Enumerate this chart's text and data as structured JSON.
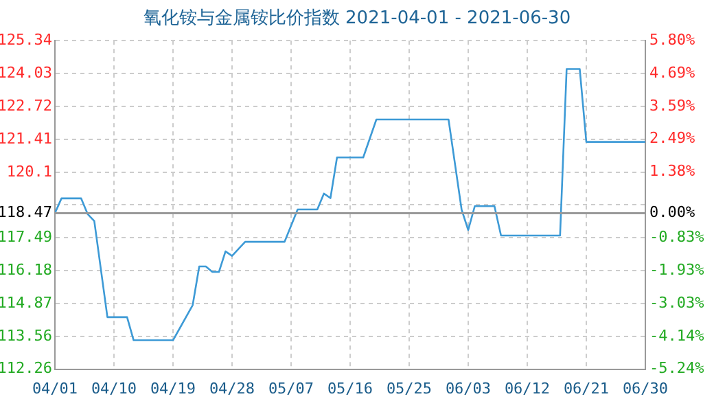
{
  "chart_data": {
    "type": "line",
    "title": "氧化铵与金属铵比价指数 2021-04-01 - 2021-06-30",
    "color": "#3d9ad6",
    "x": [
      "2021-04-01",
      "2021-04-02",
      "2021-04-05",
      "2021-04-06",
      "2021-04-07",
      "2021-04-09",
      "2021-04-12",
      "2021-04-13",
      "2021-04-19",
      "2021-04-22",
      "2021-04-23",
      "2021-04-24",
      "2021-04-25",
      "2021-04-26",
      "2021-04-27",
      "2021-04-28",
      "2021-04-30",
      "2021-05-06",
      "2021-05-08",
      "2021-05-11",
      "2021-05-12",
      "2021-05-13",
      "2021-05-14",
      "2021-05-18",
      "2021-05-20",
      "2021-05-31",
      "2021-06-02",
      "2021-06-03",
      "2021-06-04",
      "2021-06-07",
      "2021-06-08",
      "2021-06-17",
      "2021-06-18",
      "2021-06-20",
      "2021-06-21",
      "2021-06-30"
    ],
    "values": [
      118.47,
      119.06,
      119.06,
      118.43,
      118.16,
      114.33,
      114.33,
      113.41,
      113.41,
      114.81,
      116.35,
      116.35,
      116.13,
      116.13,
      116.95,
      116.77,
      117.33,
      117.33,
      118.62,
      118.62,
      119.25,
      119.07,
      120.69,
      120.69,
      122.2,
      122.2,
      118.6,
      117.8,
      118.75,
      118.75,
      117.58,
      117.58,
      124.21,
      124.21,
      121.31,
      121.31
    ],
    "xlim": [
      "2021-04-01",
      "2021-06-30"
    ],
    "xticks": [
      {
        "value": "2021-04-01",
        "label": "04/01"
      },
      {
        "value": "2021-04-10",
        "label": "04/10"
      },
      {
        "value": "2021-04-19",
        "label": "04/19"
      },
      {
        "value": "2021-04-28",
        "label": "04/28"
      },
      {
        "value": "2021-05-07",
        "label": "05/07"
      },
      {
        "value": "2021-05-16",
        "label": "05/16"
      },
      {
        "value": "2021-05-25",
        "label": "05/25"
      },
      {
        "value": "2021-06-03",
        "label": "06/03"
      },
      {
        "value": "2021-06-12",
        "label": "06/12"
      },
      {
        "value": "2021-06-21",
        "label": "06/21"
      },
      {
        "value": "2021-06-30",
        "label": "06/30"
      }
    ],
    "ylim": [
      112.26,
      125.34
    ],
    "yticks": [
      112.26,
      113.56,
      114.87,
      116.18,
      117.49,
      118.47,
      {
        "value": 118.8,
        "label": null
      },
      120.1,
      121.41,
      122.72,
      124.03,
      125.34
    ],
    "y2lim": [
      -5.24,
      5.8
    ],
    "y2ticks": [
      {
        "value": -5.24,
        "label": "-5.24%"
      },
      {
        "value": -4.14,
        "label": "-4.14%"
      },
      {
        "value": -3.03,
        "label": "-3.03%"
      },
      {
        "value": -1.93,
        "label": "-1.93%"
      },
      {
        "value": -0.83,
        "label": "-0.83%"
      },
      {
        "value": 0,
        "label": "0.00%"
      },
      {
        "value": 1.38,
        "label": "1.38%"
      },
      {
        "value": 2.49,
        "label": "2.49%"
      },
      {
        "value": 3.59,
        "label": "3.59%"
      },
      {
        "value": 4.69,
        "label": "4.69%"
      },
      {
        "value": 5.8,
        "label": "5.80%"
      }
    ],
    "ref_lines": [
      {
        "axis": "y",
        "value": 118.47,
        "color": "#999999"
      }
    ],
    "grid": true
  }
}
